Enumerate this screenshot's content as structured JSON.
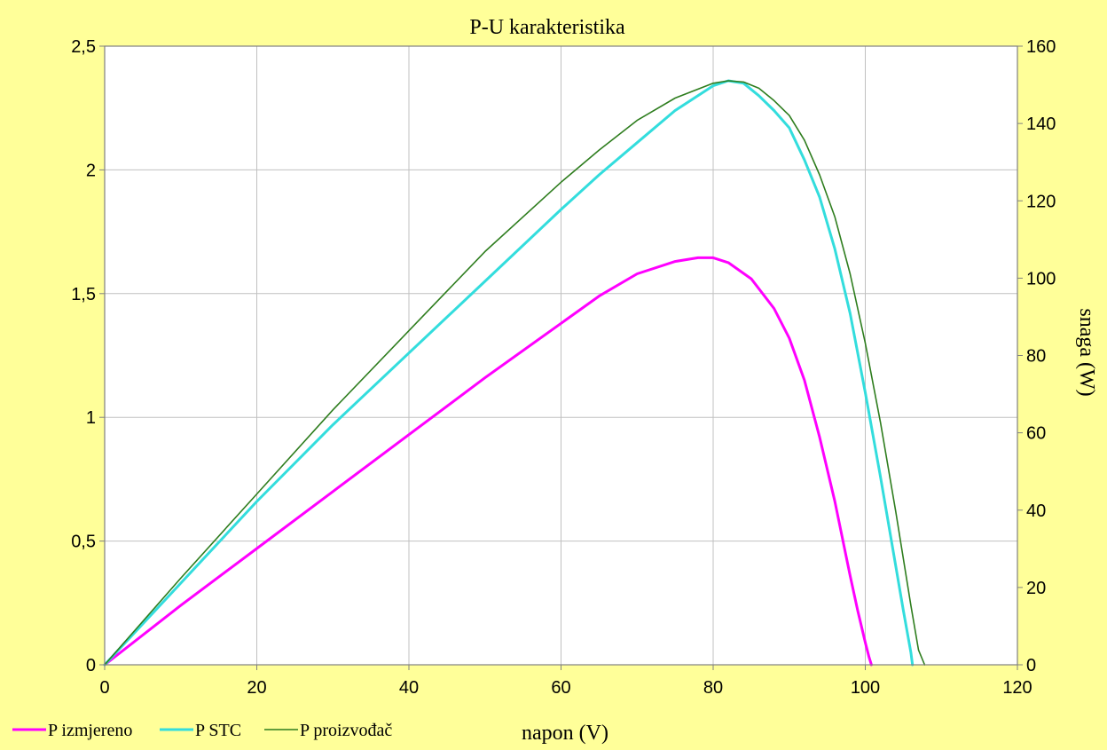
{
  "chart_data": {
    "type": "line",
    "title": "P-U karakteristika",
    "xlabel": "napon  (V)",
    "y2label": "snaga  (W)",
    "xlim": [
      0,
      120
    ],
    "ylim": [
      0,
      2.5
    ],
    "y2lim": [
      0,
      160
    ],
    "x_ticks": [
      "0",
      "20",
      "40",
      "60",
      "80",
      "100",
      "120"
    ],
    "y_ticks": [
      "0",
      "0,5",
      "1",
      "1,5",
      "2",
      "2,5"
    ],
    "y2_ticks": [
      "0",
      "20",
      "40",
      "60",
      "80",
      "100",
      "120",
      "140",
      "160"
    ],
    "grid": true,
    "legend_position": "bottom-left",
    "series": [
      {
        "name": "P izmjereno",
        "color": "#ff00ff",
        "width": 3,
        "x": [
          0,
          10,
          20,
          30,
          40,
          50,
          60,
          65,
          70,
          75,
          78,
          80,
          82,
          85,
          88,
          90,
          92,
          94,
          96,
          98,
          99,
          100,
          100.5,
          100.8
        ],
        "y": [
          0,
          0.24,
          0.47,
          0.7,
          0.93,
          1.16,
          1.38,
          1.49,
          1.58,
          1.63,
          1.645,
          1.645,
          1.625,
          1.56,
          1.44,
          1.32,
          1.15,
          0.92,
          0.66,
          0.36,
          0.22,
          0.09,
          0.03,
          0
        ]
      },
      {
        "name": "P STC",
        "color": "#33dddd",
        "width": 3,
        "x": [
          0,
          10,
          20,
          30,
          40,
          50,
          60,
          65,
          70,
          75,
          80,
          82,
          84,
          86,
          88,
          90,
          92,
          94,
          96,
          98,
          100,
          102,
          104,
          105,
          106,
          106.2
        ],
        "y": [
          0,
          0.33,
          0.66,
          0.97,
          1.26,
          1.55,
          1.84,
          1.98,
          2.11,
          2.24,
          2.34,
          2.36,
          2.35,
          2.3,
          2.24,
          2.17,
          2.04,
          1.89,
          1.68,
          1.42,
          1.1,
          0.76,
          0.4,
          0.22,
          0.05,
          0
        ]
      },
      {
        "name": "P proizvođač",
        "color": "#2e7d1e",
        "width": 1.6,
        "x": [
          0,
          10,
          20,
          30,
          40,
          50,
          60,
          65,
          70,
          75,
          80,
          82,
          84,
          86,
          88,
          90,
          92,
          94,
          96,
          98,
          100,
          102,
          104,
          106,
          107,
          107.8
        ],
        "y": [
          0,
          0.35,
          0.69,
          1.03,
          1.35,
          1.67,
          1.95,
          2.08,
          2.2,
          2.29,
          2.35,
          2.36,
          2.355,
          2.33,
          2.28,
          2.22,
          2.12,
          1.98,
          1.81,
          1.58,
          1.3,
          0.98,
          0.62,
          0.24,
          0.06,
          0
        ]
      }
    ]
  }
}
